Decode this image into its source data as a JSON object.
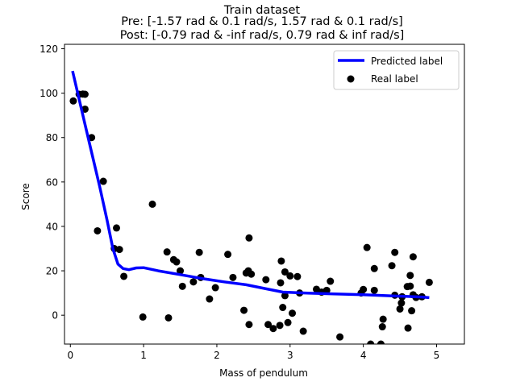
{
  "chart_data": {
    "type": "line+scatter",
    "title_lines": [
      "Train dataset",
      "Pre: [-1.57 rad & 0.1 rad/s, 1.57 rad & 0.1 rad/s]",
      "Post: [-0.79 rad & -inf rad/s, 0.79 rad & inf rad/s]"
    ],
    "xlabel": "Mass of pendulum",
    "ylabel": "Score",
    "xlim": [
      -0.08,
      5.38
    ],
    "ylim": [
      -13,
      122
    ],
    "xticks": [
      0,
      1,
      2,
      3,
      4,
      5
    ],
    "yticks": [
      0,
      20,
      40,
      60,
      80,
      100,
      120
    ],
    "grid": false,
    "legend": {
      "placement": "top-right",
      "entries": [
        "Predicted label",
        "Real label"
      ]
    },
    "series": [
      {
        "name": "Predicted label",
        "kind": "line",
        "color": "#0000ff",
        "points": [
          [
            0.03,
            110
          ],
          [
            0.1,
            100
          ],
          [
            0.2,
            86
          ],
          [
            0.3,
            72
          ],
          [
            0.4,
            58
          ],
          [
            0.5,
            43
          ],
          [
            0.58,
            30
          ],
          [
            0.65,
            23
          ],
          [
            0.72,
            21
          ],
          [
            0.8,
            20.5
          ],
          [
            0.9,
            21.3
          ],
          [
            1.0,
            21.4
          ],
          [
            1.2,
            20
          ],
          [
            1.5,
            18.3
          ],
          [
            1.8,
            16.5
          ],
          [
            2.1,
            15
          ],
          [
            2.4,
            13.7
          ],
          [
            2.7,
            11.7
          ],
          [
            2.9,
            10.4
          ],
          [
            3.2,
            10
          ],
          [
            3.6,
            9.6
          ],
          [
            4.0,
            9.2
          ],
          [
            4.4,
            8.7
          ],
          [
            4.8,
            8.2
          ],
          [
            4.9,
            7.9
          ]
        ]
      },
      {
        "name": "Real label",
        "kind": "scatter",
        "color": "#000000",
        "points": [
          [
            0.04,
            96.5
          ],
          [
            0.12,
            99.5
          ],
          [
            0.17,
            99.6
          ],
          [
            0.2,
            99.5
          ],
          [
            0.2,
            92.8
          ],
          [
            0.29,
            80
          ],
          [
            0.37,
            38
          ],
          [
            0.45,
            60.3
          ],
          [
            0.6,
            30
          ],
          [
            0.63,
            39.3
          ],
          [
            0.67,
            29.6
          ],
          [
            0.73,
            17.5
          ],
          [
            0.99,
            -0.8
          ],
          [
            1.12,
            50
          ],
          [
            1.32,
            28.5
          ],
          [
            1.34,
            -1.2
          ],
          [
            1.41,
            25
          ],
          [
            1.45,
            24
          ],
          [
            1.5,
            20
          ],
          [
            1.53,
            13
          ],
          [
            1.68,
            15
          ],
          [
            1.76,
            28.3
          ],
          [
            1.78,
            17
          ],
          [
            1.9,
            7.3
          ],
          [
            1.98,
            12.4
          ],
          [
            2.15,
            27.4
          ],
          [
            2.22,
            17
          ],
          [
            2.37,
            2.2
          ],
          [
            2.4,
            19
          ],
          [
            2.43,
            20
          ],
          [
            2.44,
            34.8
          ],
          [
            2.44,
            -4.2
          ],
          [
            2.47,
            18.5
          ],
          [
            2.67,
            16
          ],
          [
            2.7,
            -4.2
          ],
          [
            2.77,
            -6
          ],
          [
            2.86,
            -4.6
          ],
          [
            2.87,
            14.6
          ],
          [
            2.88,
            24.4
          ],
          [
            2.9,
            3.5
          ],
          [
            2.93,
            19.5
          ],
          [
            2.93,
            8.8
          ],
          [
            2.97,
            -3.3
          ],
          [
            3.0,
            17.7
          ],
          [
            3.03,
            0.9
          ],
          [
            3.1,
            17.4
          ],
          [
            3.13,
            10
          ],
          [
            3.18,
            -7.2
          ],
          [
            3.36,
            11.7
          ],
          [
            3.43,
            10.4
          ],
          [
            3.5,
            11.2
          ],
          [
            3.55,
            15.3
          ],
          [
            3.68,
            -9.8
          ],
          [
            3.97,
            10
          ],
          [
            4.0,
            11.6
          ],
          [
            4.05,
            30.5
          ],
          [
            4.1,
            -13
          ],
          [
            4.15,
            21
          ],
          [
            4.15,
            11.2
          ],
          [
            4.24,
            -13
          ],
          [
            4.26,
            -5.2
          ],
          [
            4.27,
            -1.8
          ],
          [
            4.39,
            22.3
          ],
          [
            4.43,
            28.3
          ],
          [
            4.43,
            9
          ],
          [
            4.5,
            2.8
          ],
          [
            4.52,
            5.5
          ],
          [
            4.53,
            8.3
          ],
          [
            4.6,
            12.9
          ],
          [
            4.61,
            -5.8
          ],
          [
            4.64,
            13.1
          ],
          [
            4.64,
            17.9
          ],
          [
            4.66,
            2
          ],
          [
            4.68,
            26.3
          ],
          [
            4.68,
            9.2
          ],
          [
            4.72,
            8
          ],
          [
            4.8,
            8.3
          ],
          [
            4.9,
            14.8
          ]
        ]
      }
    ]
  }
}
